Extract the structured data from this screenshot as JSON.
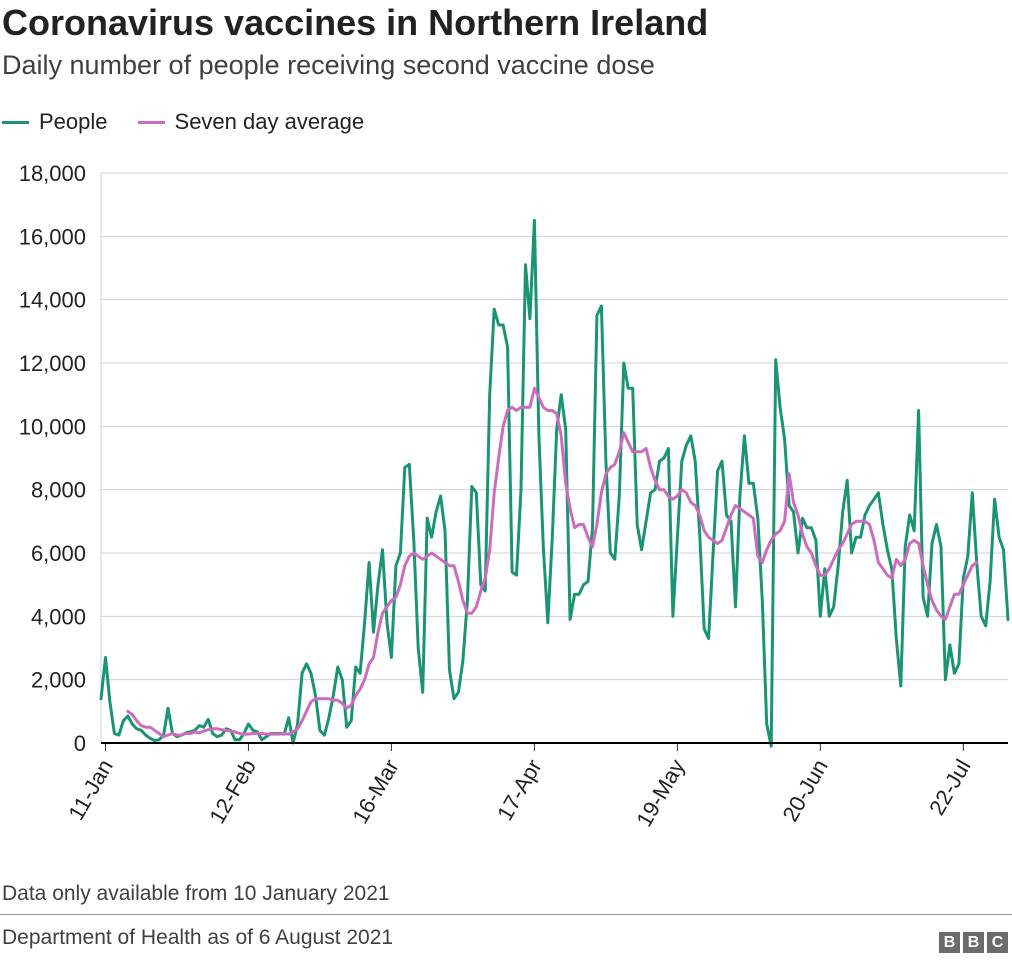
{
  "title": "Coronavirus vaccines in Northern Ireland",
  "subtitle": "Daily number of people receiving second vaccine dose",
  "footnote": "Data only available from 10 January 2021",
  "source": "Department of Health as of 6 August 2021",
  "logo": [
    "B",
    "B",
    "C"
  ],
  "colors": {
    "people": "#1b9473",
    "average": "#cc6cc0",
    "grid": "#d0d0d0",
    "axis": "#000000"
  },
  "chart_data": {
    "type": "line",
    "x_start": "10-Jan",
    "x_end": "5-Aug",
    "x_ticks": [
      "11-Jan",
      "12-Feb",
      "16-Mar",
      "17-Apr",
      "19-May",
      "20-Jun",
      "22-Jul"
    ],
    "y_ticks": [
      "0",
      "2,000",
      "4,000",
      "6,000",
      "8,000",
      "10,000",
      "12,000",
      "14,000",
      "16,000",
      "18,000"
    ],
    "ylim": [
      0,
      18000
    ],
    "grid": "horizontal",
    "legend_position": "top-left",
    "series": [
      {
        "name": "People",
        "values": [
          1400,
          2700,
          1300,
          300,
          250,
          700,
          850,
          600,
          450,
          400,
          250,
          150,
          80,
          100,
          250,
          1100,
          300,
          200,
          250,
          320,
          350,
          400,
          550,
          500,
          750,
          300,
          200,
          250,
          450,
          400,
          100,
          100,
          300,
          600,
          400,
          350,
          100,
          200,
          300,
          300,
          300,
          280,
          800,
          0,
          600,
          2200,
          2500,
          2200,
          1500,
          400,
          250,
          800,
          1500,
          2400,
          2000,
          500,
          700,
          2400,
          2200,
          3800,
          5700,
          3500,
          5000,
          6100,
          3800,
          2700,
          5600,
          6000,
          8700,
          8800,
          6400,
          3000,
          1600,
          7100,
          6500,
          7300,
          7800,
          6700,
          2300,
          1400,
          1600,
          2600,
          4500,
          8100,
          7900,
          5000,
          4800,
          11000,
          13700,
          13200,
          13200,
          12500,
          5400,
          5300,
          8000,
          15100,
          13400,
          16500,
          9700,
          6200,
          3800,
          6500,
          9900,
          11000,
          9900,
          3900,
          4700,
          4700,
          5000,
          5100,
          6800,
          13500,
          13800,
          8900,
          6000,
          5800,
          7800,
          12000,
          11200,
          11200,
          6900,
          6100,
          7000,
          7900,
          8000,
          8900,
          9000,
          9300,
          4000,
          6500,
          8900,
          9400,
          9700,
          8900,
          6600,
          3600,
          3300,
          6000,
          8600,
          8900,
          7200,
          7000,
          4300,
          7800,
          9700,
          8200,
          8200,
          7100,
          4500,
          600,
          -100,
          12100,
          10600,
          9600,
          7500,
          7300,
          6000,
          7100,
          6800,
          6800,
          6400,
          4000,
          5500,
          4000,
          4300,
          5600,
          7300,
          8300,
          6000,
          6500,
          6500,
          7200,
          7500,
          7700,
          7900,
          6900,
          6100,
          5500,
          3300,
          1800,
          6200,
          7200,
          6700,
          10500,
          4600,
          4000,
          6300,
          6900,
          6200,
          2000,
          3100,
          2200,
          2500,
          5200,
          5900,
          7900,
          5700,
          4000,
          3700,
          5100,
          7700,
          6500,
          6100,
          3900
        ]
      },
      {
        "name": "Seven day average",
        "values": [
          null,
          null,
          null,
          null,
          null,
          null,
          1000,
          900,
          700,
          550,
          500,
          500,
          400,
          300,
          200,
          250,
          300,
          250,
          250,
          300,
          300,
          350,
          320,
          380,
          420,
          450,
          450,
          420,
          400,
          380,
          350,
          300,
          280,
          280,
          300,
          300,
          300,
          280,
          280,
          280,
          280,
          300,
          280,
          350,
          450,
          700,
          1000,
          1300,
          1400,
          1400,
          1400,
          1400,
          1350,
          1350,
          1250,
          1100,
          1200,
          1500,
          1700,
          2000,
          2500,
          2700,
          3500,
          4100,
          4300,
          4500,
          4600,
          5000,
          5600,
          5900,
          6000,
          5900,
          5800,
          5900,
          6000,
          5900,
          5800,
          5700,
          5600,
          5600,
          5100,
          4500,
          4100,
          4100,
          4300,
          4800,
          5200,
          6100,
          7900,
          9000,
          10000,
          10500,
          10600,
          10500,
          10600,
          10600,
          10600,
          11200,
          10900,
          10600,
          10500,
          10500,
          10400,
          9700,
          8200,
          7400,
          6800,
          6900,
          6900,
          6500,
          6200,
          6900,
          7900,
          8500,
          8700,
          8800,
          9200,
          9800,
          9500,
          9200,
          9200,
          9200,
          9300,
          8700,
          8300,
          8000,
          8000,
          7800,
          7700,
          7800,
          8000,
          7900,
          7600,
          7500,
          7200,
          6700,
          6500,
          6400,
          6300,
          6400,
          6800,
          7200,
          7500,
          7400,
          7300,
          7200,
          7100,
          5900,
          5700,
          6100,
          6400,
          6600,
          6700,
          7000,
          8500,
          7600,
          7200,
          6600,
          6200,
          6000,
          5600,
          5300,
          5300,
          5500,
          5800,
          6100,
          6300,
          6600,
          6900,
          7000,
          7000,
          7000,
          6900,
          6400,
          5700,
          5500,
          5300,
          5200,
          5800,
          5600,
          5800,
          6300,
          6400,
          6300,
          5600,
          5000,
          4500,
          4200,
          4000,
          3900,
          4300,
          4700,
          4700,
          5000,
          5300,
          5600,
          5700
        ]
      }
    ]
  }
}
